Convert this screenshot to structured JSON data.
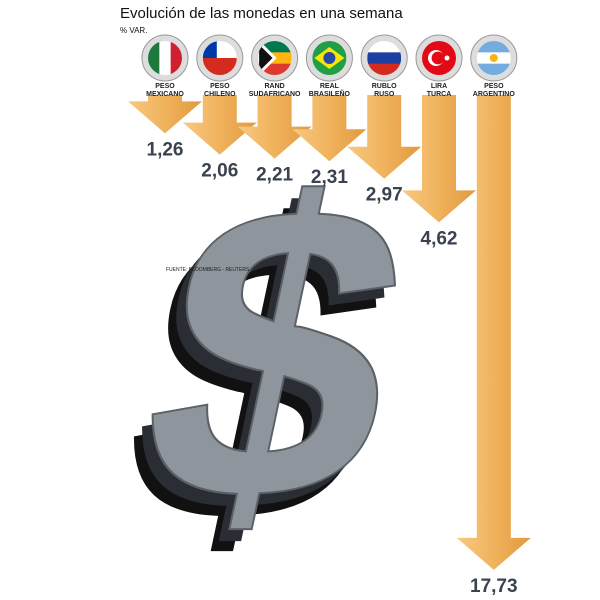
{
  "chart_data": {
    "type": "arrow-bar",
    "title": "Evolución de las monedas en una semana",
    "subtitle": "% VAR.",
    "source": "FUENTE: BLOOMBERG - REUTERS",
    "categories": [
      "PESO MEXICANO",
      "PESO CHILENO",
      "RAND SUDAFRICANO",
      "REAL BRASILEÑO",
      "RUBLO RUSO",
      "LIRA TURCA",
      "PESO ARGENTINO"
    ],
    "values": [
      1.26,
      2.06,
      2.21,
      2.31,
      2.97,
      4.62,
      17.73
    ],
    "value_labels": [
      "1,26",
      "2,06",
      "2,21",
      "2,31",
      "2,97",
      "4,62",
      "17,73"
    ],
    "color": "#f0b25c"
  }
}
